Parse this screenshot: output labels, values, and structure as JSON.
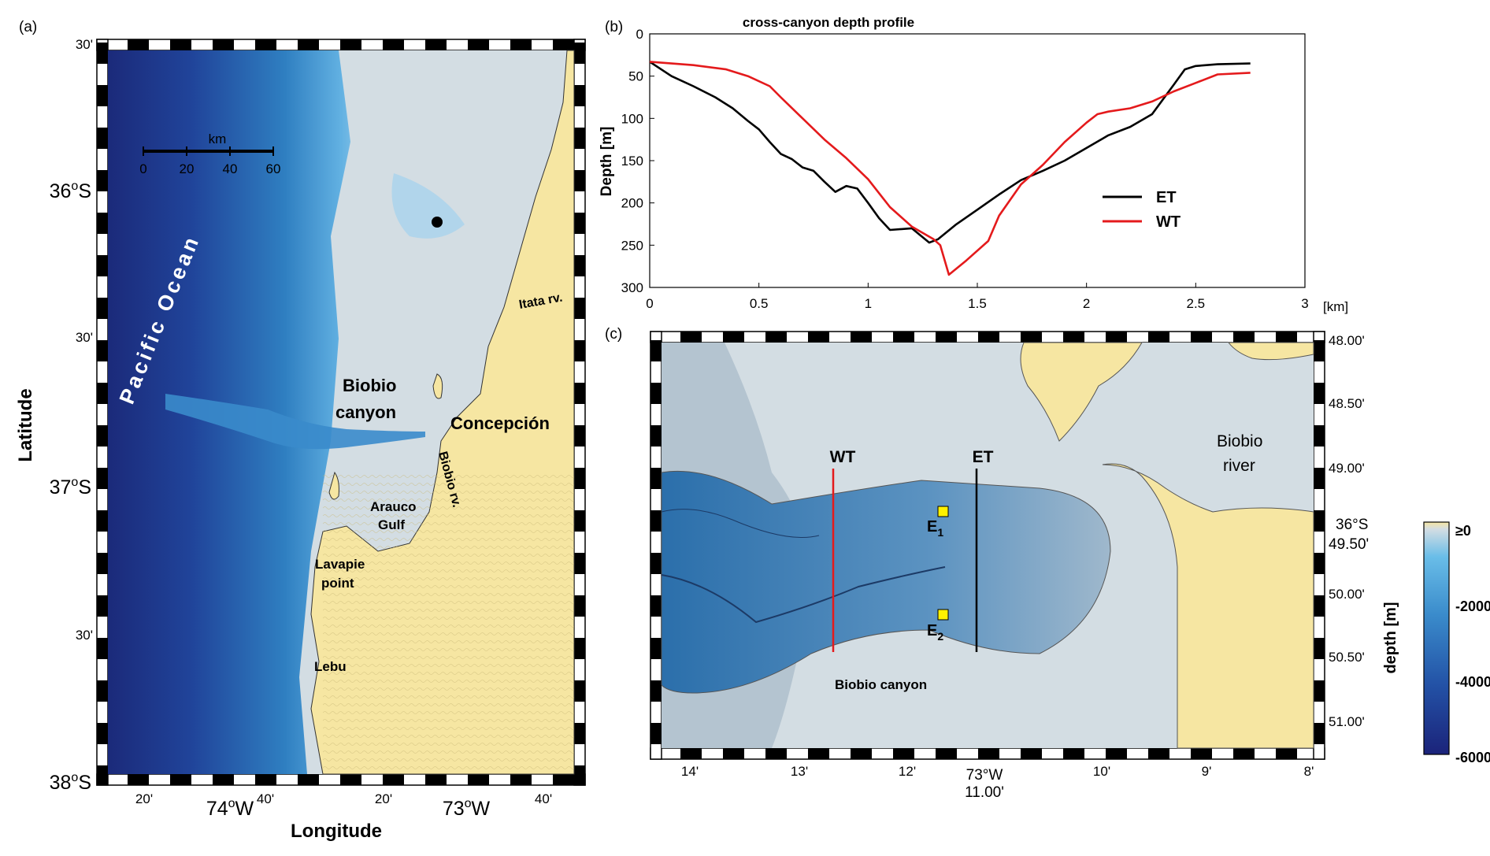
{
  "panels": {
    "a": "(a)",
    "b": "(b)",
    "c": "(c)"
  },
  "map_a": {
    "lat_label": "Latitude",
    "lon_label": "Longitude",
    "lat_ticks": [
      {
        "deg": "36",
        "sup": "o",
        "hemi": "S"
      },
      {
        "deg": "37",
        "sup": "o",
        "hemi": "S"
      },
      {
        "deg": "38",
        "sup": "o",
        "hemi": "S"
      }
    ],
    "lat_minor": [
      "30'",
      "30'",
      "30'"
    ],
    "lon_minor": [
      "20'",
      "40'",
      "20'",
      "40'"
    ],
    "lon_major": [
      {
        "deg": "74",
        "sup": "o",
        "hemi": "W"
      },
      {
        "deg": "73",
        "sup": "o",
        "hemi": "W"
      }
    ],
    "scale_bar": {
      "unit": "km",
      "ticks": [
        "0",
        "20",
        "40",
        "60"
      ]
    },
    "ocean_label": "Pacific Ocean",
    "places": {
      "biobio_canyon_1": "Biobio",
      "biobio_canyon_2": "canyon",
      "concepcion": "Concepción",
      "itata": "Itata rv.",
      "biobio_rv": "Biobio rv.",
      "arauco_1": "Arauco",
      "arauco_2": "Gulf",
      "lavapie_1": "Lavapie",
      "lavapie_2": "point",
      "lebu": "Lebu"
    },
    "colors": {
      "deep": "#1b2a7a",
      "mid": "#2f7fc1",
      "shallow": "#a9d3ec",
      "shelf": "#d3dde3",
      "land": "#f6e6a2"
    }
  },
  "chart_data": {
    "type": "line",
    "title": "cross-canyon depth profile",
    "xlabel": "",
    "x_unit": "[km]",
    "ylabel": "Depth [m]",
    "xlim": [
      0,
      3
    ],
    "ylim": [
      0,
      300
    ],
    "y_reversed": true,
    "x_ticks": [
      "0",
      "0.5",
      "1",
      "1.5",
      "2",
      "2.5",
      "3"
    ],
    "y_ticks": [
      "0",
      "50",
      "100",
      "150",
      "200",
      "250",
      "300"
    ],
    "legend_position": "right",
    "series": [
      {
        "name": "ET",
        "color": "#000000",
        "x": [
          0,
          0.1,
          0.2,
          0.3,
          0.38,
          0.45,
          0.5,
          0.55,
          0.6,
          0.65,
          0.7,
          0.75,
          0.8,
          0.85,
          0.9,
          0.95,
          1.0,
          1.05,
          1.1,
          1.2,
          1.28,
          1.32,
          1.4,
          1.5,
          1.6,
          1.7,
          1.8,
          1.9,
          2.0,
          2.1,
          2.2,
          2.3,
          2.4,
          2.45,
          2.5,
          2.6,
          2.75
        ],
        "y": [
          33,
          50,
          62,
          75,
          88,
          103,
          113,
          128,
          142,
          148,
          158,
          162,
          175,
          187,
          180,
          183,
          200,
          218,
          232,
          230,
          247,
          243,
          226,
          208,
          190,
          173,
          162,
          150,
          135,
          120,
          110,
          95,
          60,
          42,
          38,
          36,
          35
        ]
      },
      {
        "name": "WT",
        "color": "#e41a1c",
        "x": [
          0,
          0.2,
          0.35,
          0.45,
          0.55,
          0.6,
          0.7,
          0.8,
          0.9,
          1.0,
          1.1,
          1.2,
          1.3,
          1.33,
          1.37,
          1.45,
          1.55,
          1.6,
          1.7,
          1.8,
          1.9,
          2.0,
          2.05,
          2.1,
          2.2,
          2.3,
          2.4,
          2.5,
          2.6,
          2.75
        ],
        "y": [
          33,
          37,
          42,
          50,
          62,
          75,
          100,
          125,
          147,
          172,
          205,
          228,
          243,
          250,
          285,
          268,
          245,
          215,
          178,
          155,
          128,
          105,
          95,
          92,
          88,
          80,
          68,
          58,
          48,
          46
        ]
      }
    ]
  },
  "map_c": {
    "lon_ticks": [
      "14'",
      "13'",
      "12'",
      "73°W",
      "10'",
      "9'",
      "8'"
    ],
    "lon_sub": "11.00'",
    "lat_ticks": [
      "48.00'",
      "48.50'",
      "49.00'",
      "49.50'",
      "50.00'",
      "50.50'",
      "51.00'"
    ],
    "lat_deg": "36°S",
    "transects": {
      "wt": "WT",
      "et": "ET"
    },
    "stations": [
      {
        "main": "E",
        "sub": "1"
      },
      {
        "main": "E",
        "sub": "2"
      }
    ],
    "labels": {
      "canyon": "Biobio canyon",
      "river_1": "Biobio",
      "river_2": "river"
    },
    "colors": {
      "wt_line": "#e41a1c",
      "et_line": "#000000",
      "station": "#fff200"
    }
  },
  "colorbar": {
    "label": "depth [m]",
    "ticks": [
      "≥0",
      "-2000",
      "-4000",
      "-6000"
    ]
  }
}
